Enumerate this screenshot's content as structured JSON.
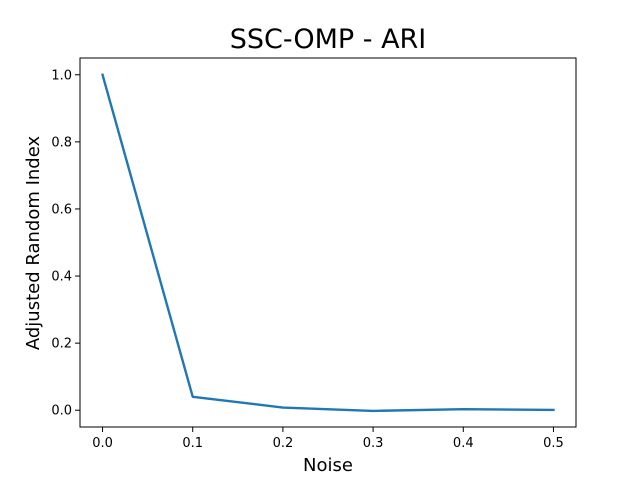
{
  "chart_data": {
    "type": "line",
    "title": "SSC-OMP - ARI",
    "xlabel": "Noise",
    "ylabel": "Adjusted Random Index",
    "x": [
      0.0,
      0.1,
      0.2,
      0.3,
      0.4,
      0.5
    ],
    "series": [
      {
        "values": [
          1.0,
          0.04,
          0.008,
          -0.002,
          0.003,
          0.001
        ],
        "color": "#1f77b4"
      }
    ],
    "xlim": [
      -0.025,
      0.525
    ],
    "ylim": [
      -0.05,
      1.05
    ],
    "xticks": [
      0.0,
      0.1,
      0.2,
      0.3,
      0.4,
      0.5
    ],
    "xtick_labels": [
      "0.0",
      "0.1",
      "0.2",
      "0.3",
      "0.4",
      "0.5"
    ],
    "yticks": [
      0.0,
      0.2,
      0.4,
      0.6,
      0.8,
      1.0
    ],
    "ytick_labels": [
      "0.0",
      "0.2",
      "0.4",
      "0.6",
      "0.8",
      "1.0"
    ],
    "grid": false,
    "legend": false
  }
}
